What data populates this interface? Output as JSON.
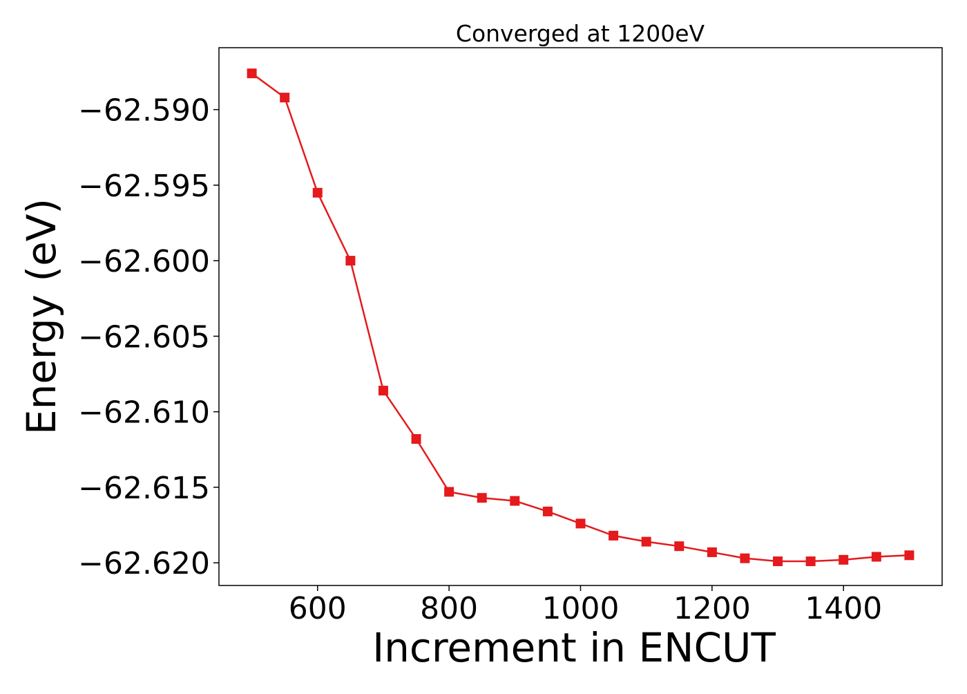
{
  "chart_data": {
    "type": "line",
    "title": "Converged at 1200eV",
    "xlabel": "Increment in ENCUT",
    "ylabel": "Energy (eV)",
    "x": [
      500,
      550,
      600,
      650,
      700,
      750,
      800,
      850,
      900,
      950,
      1000,
      1050,
      1100,
      1150,
      1200,
      1250,
      1300,
      1350,
      1400,
      1450,
      1500
    ],
    "series": [
      {
        "values": [
          -62.5876,
          -62.5892,
          -62.5955,
          -62.6,
          -62.6086,
          -62.6118,
          -62.6153,
          -62.6157,
          -62.6159,
          -62.6166,
          -62.6174,
          -62.6182,
          -62.6186,
          -62.6189,
          -62.6193,
          -62.6197,
          -62.6199,
          -62.6199,
          -62.6198,
          -62.6196,
          -62.6195
        ],
        "color": "#e41a1c",
        "marker": "square"
      }
    ],
    "xlim": [
      450,
      1550
    ],
    "ylim": [
      -62.6215,
      -62.5859
    ],
    "xticks": [
      600,
      800,
      1000,
      1200,
      1400
    ],
    "xtick_labels": [
      "600",
      "800",
      "1000",
      "1200",
      "1400"
    ],
    "yticks": [
      -62.59,
      -62.595,
      -62.6,
      -62.605,
      -62.61,
      -62.615,
      -62.62
    ],
    "ytick_labels": [
      "−62.590",
      "−62.595",
      "−62.600",
      "−62.605",
      "−62.610",
      "−62.615",
      "−62.620"
    ],
    "grid": false,
    "legend": "none"
  }
}
